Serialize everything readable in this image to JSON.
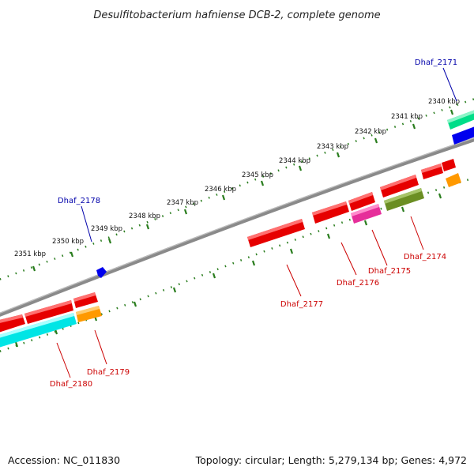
{
  "title": "Desulfitobacterium hafniense DCB-2, complete genome",
  "footer": {
    "accession": "Accession: NC_011830",
    "summary": "Topology: circular; Length: 5,279,134 bp; Genes: 4,972"
  },
  "scale_labels": [
    "2351 kbp",
    "2350 kbp",
    "2349 kbp",
    "2348 kbp",
    "2347 kbp",
    "2346 kbp",
    "2345 kbp",
    "2344 kbp",
    "2343 kbp",
    "2342 kbp",
    "2341 kbp",
    "2340 kbp"
  ],
  "gene_labels": [
    {
      "name": "Dhaf_2171",
      "strand": "forward"
    },
    {
      "name": "Dhaf_2178",
      "strand": "forward"
    },
    {
      "name": "Dhaf_2174",
      "strand": "reverse"
    },
    {
      "name": "Dhaf_2175",
      "strand": "reverse"
    },
    {
      "name": "Dhaf_2176",
      "strand": "reverse"
    },
    {
      "name": "Dhaf_2177",
      "strand": "reverse"
    },
    {
      "name": "Dhaf_2179",
      "strand": "reverse"
    },
    {
      "name": "Dhaf_2180",
      "strand": "reverse"
    }
  ],
  "colors": {
    "forward_label": "#0000aa",
    "reverse_label": "#cc0000",
    "backbone": "#888888",
    "ticks": "#2a7d1e",
    "gene_red": "#e60000",
    "gene_cyan": "#00e5e5",
    "gene_orange": "#ff9900",
    "gene_magenta": "#e62e9a",
    "gene_olive": "#6b8e23",
    "gene_green": "#00dd88",
    "gene_blue": "#0000ee"
  }
}
